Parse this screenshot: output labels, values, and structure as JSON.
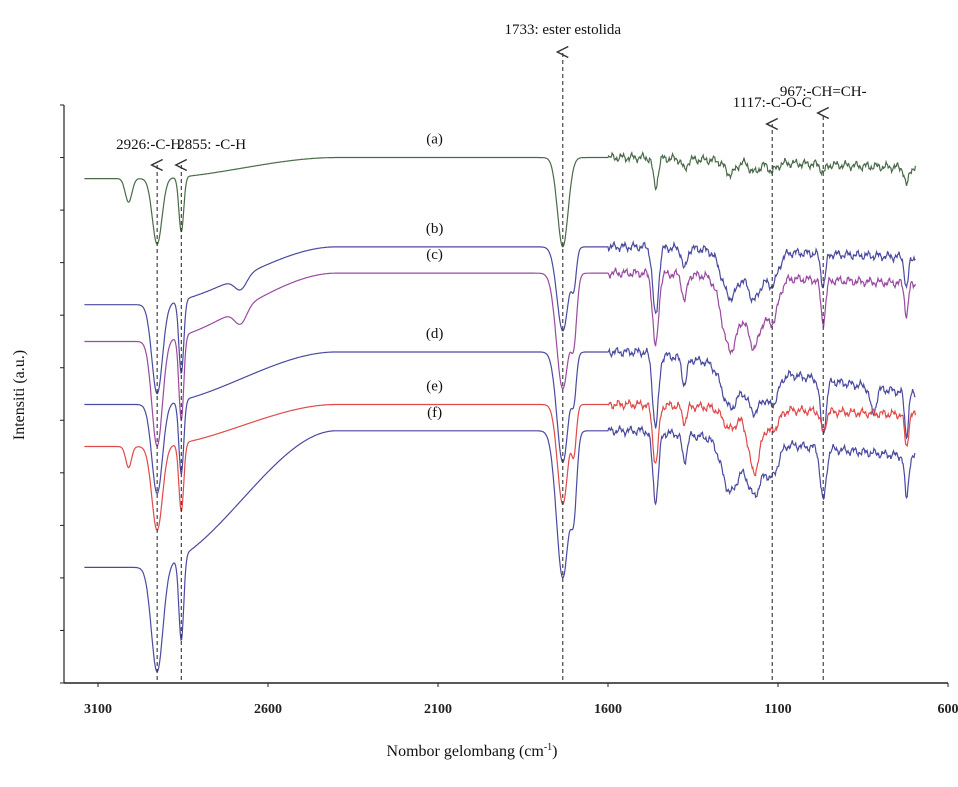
{
  "chart_data": {
    "type": "line",
    "xlabel": "Nombor gelombang (cm",
    "xlabel_sup": "-1",
    "xlabel_close": ")",
    "ylabel": "Intensiti (a.u.)",
    "xlim": [
      3200,
      600
    ],
    "ylim": [
      0,
      11
    ],
    "x_ticks": [
      3100,
      2600,
      2100,
      1600,
      1100,
      600
    ],
    "grid": false,
    "annotations": [
      {
        "text": "2926:-C-H",
        "x": 2926
      },
      {
        "text": "2855: -C-H",
        "x": 2855
      },
      {
        "text": "1733: ester estolida",
        "x": 1733
      },
      {
        "text": "1117:-C-O-C",
        "x": 1117
      },
      {
        "text": "967:-CH=CH-",
        "x": 967
      }
    ],
    "series": [
      {
        "name": "(a)",
        "color": "#4a6b4a",
        "baseline": 9.6,
        "plateau": 10.0,
        "tail": 9.8,
        "peaks": [
          {
            "x": 3010,
            "depth": 0.45,
            "width": 14
          },
          {
            "x": 2926,
            "depth": 1.25,
            "width": 20
          },
          {
            "x": 2855,
            "depth": 1.05,
            "width": 10
          },
          {
            "x": 1733,
            "depth": 1.7,
            "width": 22
          },
          {
            "x": 1460,
            "depth": 0.55,
            "width": 10
          },
          {
            "x": 1375,
            "depth": 0.2,
            "width": 10
          },
          {
            "x": 1240,
            "depth": 0.25,
            "width": 22
          },
          {
            "x": 1170,
            "depth": 0.2,
            "width": 20
          },
          {
            "x": 1117,
            "depth": 0.15,
            "width": 20
          },
          {
            "x": 967,
            "depth": 0.15,
            "width": 10
          },
          {
            "x": 722,
            "depth": 0.35,
            "width": 8
          }
        ]
      },
      {
        "name": "(b)",
        "color": "#4a4aa0",
        "baseline": 7.2,
        "plateau": 8.3,
        "tail": 8.1,
        "peaks": [
          {
            "x": 2926,
            "depth": 1.7,
            "width": 22
          },
          {
            "x": 2855,
            "depth": 1.4,
            "width": 10
          },
          {
            "x": 2680,
            "depth": 0.25,
            "width": 25
          },
          {
            "x": 1733,
            "depth": 1.6,
            "width": 24
          },
          {
            "x": 1700,
            "depth": 0.6,
            "width": 10
          },
          {
            "x": 1460,
            "depth": 1.3,
            "width": 12
          },
          {
            "x": 1375,
            "depth": 0.4,
            "width": 10
          },
          {
            "x": 1240,
            "depth": 0.9,
            "width": 35
          },
          {
            "x": 1170,
            "depth": 0.9,
            "width": 30
          },
          {
            "x": 1117,
            "depth": 0.6,
            "width": 25
          },
          {
            "x": 967,
            "depth": 0.6,
            "width": 10
          },
          {
            "x": 722,
            "depth": 0.6,
            "width": 8
          }
        ]
      },
      {
        "name": "(c)",
        "color": "#9a4aa0",
        "baseline": 6.5,
        "plateau": 7.8,
        "tail": 7.6,
        "peaks": [
          {
            "x": 2926,
            "depth": 2.0,
            "width": 22
          },
          {
            "x": 2855,
            "depth": 1.6,
            "width": 10
          },
          {
            "x": 2680,
            "depth": 0.3,
            "width": 25
          },
          {
            "x": 1733,
            "depth": 2.2,
            "width": 26
          },
          {
            "x": 1700,
            "depth": 1.0,
            "width": 12
          },
          {
            "x": 1460,
            "depth": 1.4,
            "width": 12
          },
          {
            "x": 1375,
            "depth": 0.5,
            "width": 10
          },
          {
            "x": 1240,
            "depth": 1.4,
            "width": 35
          },
          {
            "x": 1170,
            "depth": 1.3,
            "width": 30
          },
          {
            "x": 1117,
            "depth": 0.8,
            "width": 25
          },
          {
            "x": 967,
            "depth": 0.8,
            "width": 10
          },
          {
            "x": 722,
            "depth": 0.6,
            "width": 8
          }
        ]
      },
      {
        "name": "(d)",
        "color": "#4a4aa0",
        "baseline": 5.3,
        "plateau": 6.3,
        "tail": 5.5,
        "peaks": [
          {
            "x": 2926,
            "depth": 1.7,
            "width": 22
          },
          {
            "x": 2855,
            "depth": 1.4,
            "width": 10
          },
          {
            "x": 1733,
            "depth": 2.1,
            "width": 24
          },
          {
            "x": 1700,
            "depth": 0.7,
            "width": 10
          },
          {
            "x": 1460,
            "depth": 1.4,
            "width": 12
          },
          {
            "x": 1375,
            "depth": 0.5,
            "width": 10
          },
          {
            "x": 1240,
            "depth": 0.8,
            "width": 35
          },
          {
            "x": 1170,
            "depth": 0.8,
            "width": 30
          },
          {
            "x": 1117,
            "depth": 0.6,
            "width": 25
          },
          {
            "x": 967,
            "depth": 1.0,
            "width": 12
          },
          {
            "x": 820,
            "depth": 0.5,
            "width": 12
          },
          {
            "x": 722,
            "depth": 0.8,
            "width": 8
          }
        ]
      },
      {
        "name": "(e)",
        "color": "#e04a4a",
        "baseline": 4.5,
        "plateau": 5.3,
        "tail": 5.1,
        "peaks": [
          {
            "x": 3010,
            "depth": 0.4,
            "width": 12
          },
          {
            "x": 2926,
            "depth": 1.6,
            "width": 22
          },
          {
            "x": 2855,
            "depth": 1.3,
            "width": 10
          },
          {
            "x": 1733,
            "depth": 1.9,
            "width": 22
          },
          {
            "x": 1700,
            "depth": 0.8,
            "width": 10
          },
          {
            "x": 1460,
            "depth": 1.1,
            "width": 12
          },
          {
            "x": 1375,
            "depth": 0.3,
            "width": 10
          },
          {
            "x": 1240,
            "depth": 0.4,
            "width": 30
          },
          {
            "x": 1170,
            "depth": 1.2,
            "width": 25
          },
          {
            "x": 1117,
            "depth": 0.4,
            "width": 25
          },
          {
            "x": 967,
            "depth": 0.4,
            "width": 10
          },
          {
            "x": 722,
            "depth": 0.6,
            "width": 8
          }
        ]
      },
      {
        "name": "(f)",
        "color": "#4a4aa0",
        "baseline": 2.2,
        "plateau": 4.8,
        "tail": 4.3,
        "peaks": [
          {
            "x": 2926,
            "depth": 2.0,
            "width": 24
          },
          {
            "x": 2855,
            "depth": 1.6,
            "width": 10
          },
          {
            "x": 1733,
            "depth": 2.8,
            "width": 26
          },
          {
            "x": 1700,
            "depth": 1.2,
            "width": 12
          },
          {
            "x": 1460,
            "depth": 1.3,
            "width": 12
          },
          {
            "x": 1375,
            "depth": 0.5,
            "width": 10
          },
          {
            "x": 1240,
            "depth": 1.0,
            "width": 35
          },
          {
            "x": 1170,
            "depth": 1.0,
            "width": 30
          },
          {
            "x": 1117,
            "depth": 0.6,
            "width": 25
          },
          {
            "x": 967,
            "depth": 1.0,
            "width": 12
          },
          {
            "x": 722,
            "depth": 0.8,
            "width": 8
          }
        ]
      }
    ]
  }
}
